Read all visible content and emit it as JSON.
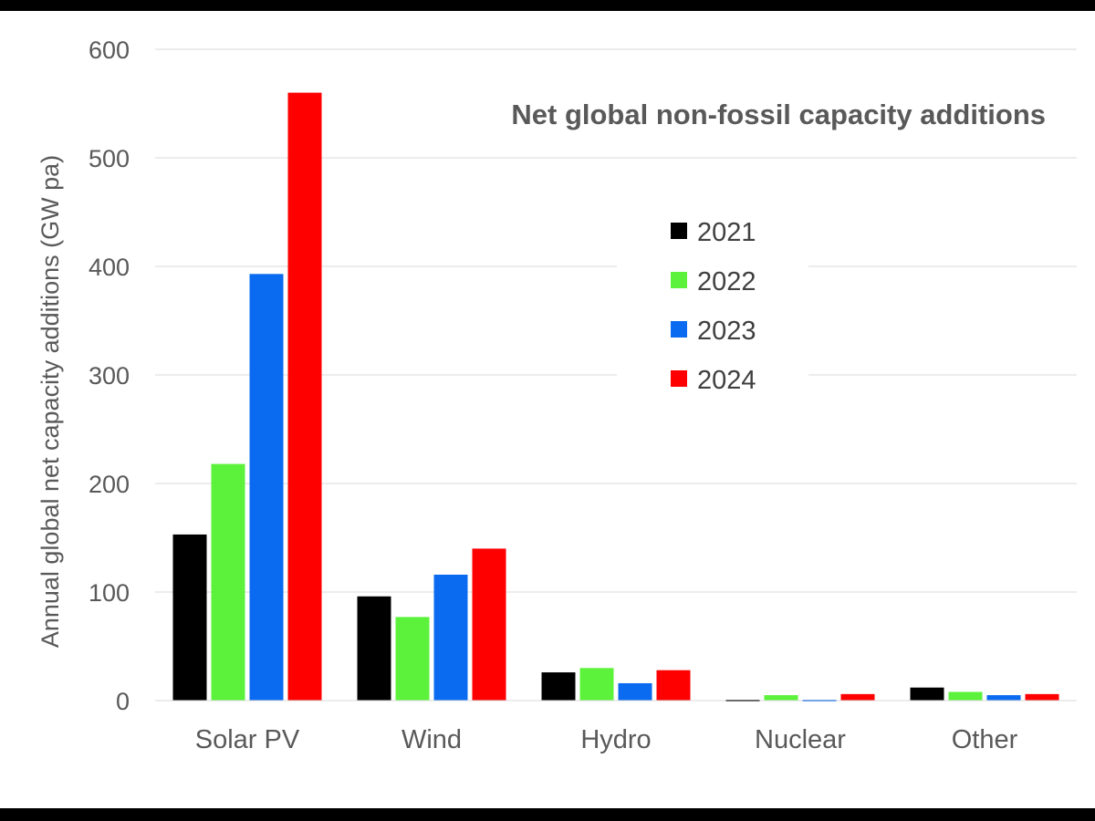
{
  "chart_data": {
    "type": "bar",
    "title": "Net global non-fossil capacity additions",
    "xlabel": "",
    "ylabel": "Annual global net capacity additions (GW pa)",
    "ylim": [
      0,
      600
    ],
    "yticks": [
      "0",
      "100",
      "200",
      "300",
      "400",
      "500",
      "600"
    ],
    "ytick_values": [
      0,
      100,
      200,
      300,
      400,
      500,
      600
    ],
    "grid": true,
    "legend_position": "right",
    "categories": [
      "Solar PV",
      "Wind",
      "Hydro",
      "Nuclear",
      "Other"
    ],
    "series": [
      {
        "name": "2021",
        "color": "#000000",
        "values": [
          153,
          96,
          26,
          0,
          12
        ]
      },
      {
        "name": "2022",
        "color": "#5cf23c",
        "values": [
          218,
          77,
          30,
          5,
          8
        ]
      },
      {
        "name": "2023",
        "color": "#0b6bf0",
        "values": [
          393,
          116,
          16,
          0,
          5
        ]
      },
      {
        "name": "2024",
        "color": "#ff0000",
        "values": [
          560,
          140,
          28,
          6,
          6
        ]
      }
    ]
  }
}
